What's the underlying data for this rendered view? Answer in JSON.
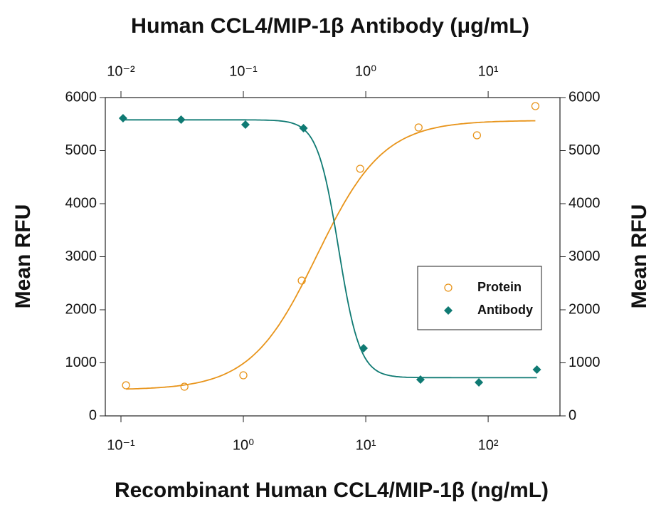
{
  "chart_data": {
    "type": "scatter",
    "title": "Human CCL4/MIP-1β Antibody (μg/mL)",
    "xlabel": "Recombinant Human CCL4/MIP-1β (ng/mL)",
    "ylabel": "Mean RFU",
    "y2label": "Mean RFU",
    "xscale": "log",
    "xlim": [
      0.0745,
      386
    ],
    "xticks": [
      {
        "value": 0.1,
        "label": "10⁻¹"
      },
      {
        "value": 1,
        "label": "10⁰"
      },
      {
        "value": 10,
        "label": "10¹"
      },
      {
        "value": 100,
        "label": "10²"
      }
    ],
    "x2lim": [
      0.00745,
      38.6
    ],
    "x2ticks": [
      {
        "value": 0.01,
        "label": "10⁻²"
      },
      {
        "value": 0.1,
        "label": "10⁻¹"
      },
      {
        "value": 1,
        "label": "10⁰"
      },
      {
        "value": 10,
        "label": "10¹"
      }
    ],
    "ylim": [
      0,
      6000
    ],
    "yticks": [
      0,
      1000,
      2000,
      3000,
      4000,
      5000,
      6000
    ],
    "y2lim": [
      0,
      6000
    ],
    "y2ticks": [
      0,
      1000,
      2000,
      3000,
      4000,
      5000,
      6000
    ],
    "legend": "center-right",
    "series": [
      {
        "name": "Protein",
        "color": "#e8941a",
        "marker": "open-circle",
        "x": [
          0.11,
          0.33,
          1,
          3,
          9,
          27,
          81,
          243
        ],
        "values": [
          577,
          550,
          765,
          2550,
          4658,
          5436,
          5289,
          5839
        ],
        "fit": {
          "bottom": 490,
          "top": 5570,
          "ec50": 4,
          "hill": 1.6
        }
      },
      {
        "name": "Antibody",
        "color": "#0f7a73",
        "marker": "diamond",
        "axis": "x2",
        "x": [
          0.0104,
          0.031,
          0.104,
          0.31,
          0.96,
          2.8,
          8.4,
          25
        ],
        "values": [
          5611,
          5584,
          5490,
          5423,
          1275,
          685,
          631,
          872
        ],
        "fit": {
          "bottom": 720,
          "top": 5580,
          "ec50": 0.6,
          "hill": 5
        }
      }
    ]
  }
}
